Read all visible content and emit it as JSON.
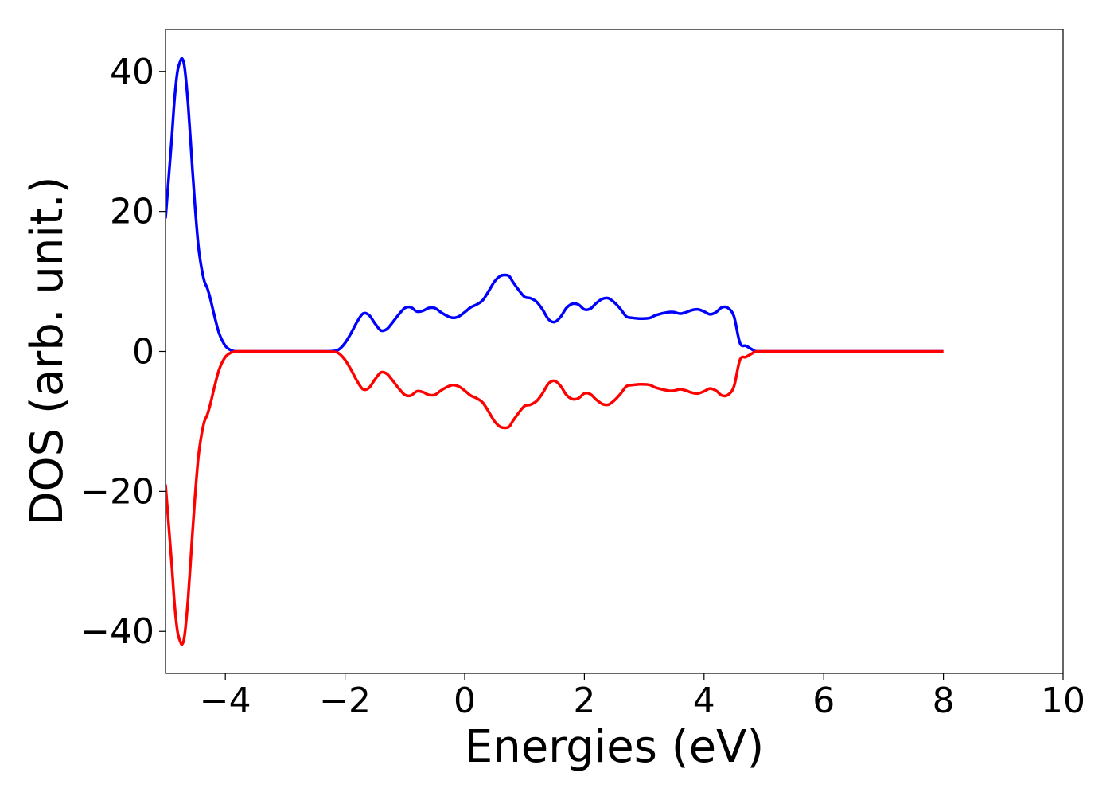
{
  "chart_data": {
    "type": "line",
    "title": "",
    "xlabel": "Energies (eV)",
    "ylabel": "DOS (arb. unit.)",
    "xlim": [
      -5,
      10
    ],
    "ylim": [
      -46,
      46
    ],
    "grid": false,
    "legend": "none",
    "x_ticks": [
      "−4",
      "−2",
      "0",
      "2",
      "4",
      "6",
      "8",
      "10"
    ],
    "x_tick_values": [
      -4,
      -2,
      0,
      2,
      4,
      6,
      8,
      10
    ],
    "y_ticks": [
      "−40",
      "−20",
      "0",
      "20",
      "40"
    ],
    "y_tick_values": [
      -40,
      -20,
      0,
      20,
      40
    ],
    "series": [
      {
        "color": "#0000ff",
        "x": [
          -5.0,
          -4.9,
          -4.85,
          -4.8,
          -4.75,
          -4.72,
          -4.68,
          -4.62,
          -4.55,
          -4.5,
          -4.45,
          -4.4,
          -4.35,
          -4.3,
          -4.25,
          -4.18,
          -4.1,
          -4.0,
          -3.9,
          -3.8,
          -3.6,
          -3.0,
          -2.5,
          -2.2,
          -2.1,
          -2.0,
          -1.9,
          -1.8,
          -1.7,
          -1.6,
          -1.5,
          -1.4,
          -1.3,
          -1.2,
          -1.1,
          -1.0,
          -0.9,
          -0.8,
          -0.7,
          -0.6,
          -0.5,
          -0.4,
          -0.3,
          -0.2,
          -0.1,
          0.0,
          0.1,
          0.2,
          0.3,
          0.4,
          0.5,
          0.6,
          0.7,
          0.75,
          0.8,
          0.9,
          1.0,
          1.1,
          1.2,
          1.3,
          1.4,
          1.5,
          1.6,
          1.7,
          1.8,
          1.9,
          2.0,
          2.1,
          2.2,
          2.3,
          2.4,
          2.5,
          2.6,
          2.7,
          2.8,
          2.9,
          3.0,
          3.1,
          3.2,
          3.4,
          3.5,
          3.6,
          3.7,
          3.8,
          3.9,
          4.0,
          4.1,
          4.2,
          4.3,
          4.4,
          4.5,
          4.6,
          4.7,
          4.8,
          4.85,
          4.9,
          5.0,
          5.1,
          5.2,
          5.3,
          5.4,
          5.5,
          5.6,
          5.7,
          5.8,
          5.9,
          6.0,
          6.1,
          6.3,
          7.0,
          8.0
        ],
        "y": [
          19,
          30,
          36,
          40,
          41.5,
          41.8,
          40.5,
          35,
          26,
          20,
          15,
          12,
          10,
          9,
          7.5,
          5,
          2.5,
          0.8,
          0.15,
          0,
          0,
          0,
          0,
          0.05,
          0.3,
          1.2,
          2.6,
          4.2,
          5.4,
          5.2,
          4.0,
          3.0,
          3.2,
          4.2,
          5.3,
          6.2,
          6.3,
          5.7,
          5.8,
          6.2,
          6.2,
          5.6,
          5.1,
          4.8,
          5.0,
          5.6,
          6.3,
          6.7,
          7.3,
          8.6,
          10.0,
          10.8,
          10.9,
          10.7,
          10.0,
          8.8,
          7.8,
          7.6,
          7.1,
          6.0,
          4.6,
          4.2,
          4.9,
          6.2,
          6.8,
          6.7,
          6.0,
          6.1,
          6.9,
          7.5,
          7.6,
          7.0,
          6.1,
          5.0,
          4.8,
          4.7,
          4.7,
          4.8,
          5.2,
          5.6,
          5.6,
          5.4,
          5.6,
          5.9,
          6.0,
          5.7,
          5.3,
          5.6,
          6.3,
          6.2,
          5.0,
          1.2,
          0.8,
          0.3,
          0.05,
          0,
          0,
          0,
          0,
          0,
          0,
          0,
          0,
          0,
          0,
          0,
          0,
          0,
          0,
          0,
          0
        ]
      },
      {
        "color": "#ff0000",
        "x": [
          -5.0,
          -4.9,
          -4.85,
          -4.8,
          -4.75,
          -4.72,
          -4.68,
          -4.62,
          -4.55,
          -4.5,
          -4.45,
          -4.4,
          -4.35,
          -4.3,
          -4.25,
          -4.18,
          -4.1,
          -4.0,
          -3.9,
          -3.8,
          -3.6,
          -3.0,
          -2.5,
          -2.2,
          -2.1,
          -2.0,
          -1.9,
          -1.8,
          -1.7,
          -1.6,
          -1.5,
          -1.4,
          -1.3,
          -1.2,
          -1.1,
          -1.0,
          -0.9,
          -0.8,
          -0.7,
          -0.6,
          -0.5,
          -0.4,
          -0.3,
          -0.2,
          -0.1,
          0.0,
          0.1,
          0.2,
          0.3,
          0.4,
          0.5,
          0.6,
          0.7,
          0.75,
          0.8,
          0.9,
          1.0,
          1.1,
          1.2,
          1.3,
          1.4,
          1.5,
          1.6,
          1.7,
          1.8,
          1.9,
          2.0,
          2.1,
          2.2,
          2.3,
          2.4,
          2.5,
          2.6,
          2.7,
          2.8,
          2.9,
          3.0,
          3.1,
          3.2,
          3.4,
          3.5,
          3.6,
          3.7,
          3.8,
          3.9,
          4.0,
          4.1,
          4.2,
          4.3,
          4.4,
          4.5,
          4.6,
          4.7,
          4.8,
          4.85,
          4.9,
          5.0,
          5.1,
          5.2,
          5.3,
          5.4,
          5.5,
          5.6,
          5.7,
          5.8,
          5.9,
          6.0,
          6.1,
          6.3,
          7.0,
          8.0
        ],
        "y": [
          -19,
          -30,
          -36,
          -40,
          -41.5,
          -41.8,
          -40.5,
          -35,
          -26,
          -20,
          -15,
          -12,
          -10,
          -9,
          -7.5,
          -5,
          -2.5,
          -0.8,
          -0.15,
          0,
          0,
          0,
          0,
          -0.05,
          -0.3,
          -1.2,
          -2.6,
          -4.2,
          -5.4,
          -5.2,
          -4.0,
          -3.0,
          -3.2,
          -4.2,
          -5.3,
          -6.2,
          -6.3,
          -5.7,
          -5.8,
          -6.2,
          -6.2,
          -5.6,
          -5.1,
          -4.8,
          -5.0,
          -5.6,
          -6.3,
          -6.7,
          -7.3,
          -8.6,
          -10.0,
          -10.8,
          -10.9,
          -10.7,
          -10.0,
          -8.8,
          -7.8,
          -7.6,
          -7.1,
          -6.0,
          -4.6,
          -4.2,
          -4.9,
          -6.2,
          -6.8,
          -6.7,
          -6.0,
          -6.1,
          -6.9,
          -7.5,
          -7.6,
          -7.0,
          -6.1,
          -5.0,
          -4.8,
          -4.7,
          -4.7,
          -4.8,
          -5.2,
          -5.6,
          -5.6,
          -5.4,
          -5.6,
          -5.9,
          -6.0,
          -5.7,
          -5.3,
          -5.6,
          -6.3,
          -6.2,
          -5.0,
          -1.2,
          -0.8,
          -0.3,
          -0.05,
          0,
          0,
          0,
          0,
          0,
          0,
          0,
          0,
          0,
          0,
          0,
          0,
          0,
          0,
          0,
          0
        ]
      }
    ]
  }
}
